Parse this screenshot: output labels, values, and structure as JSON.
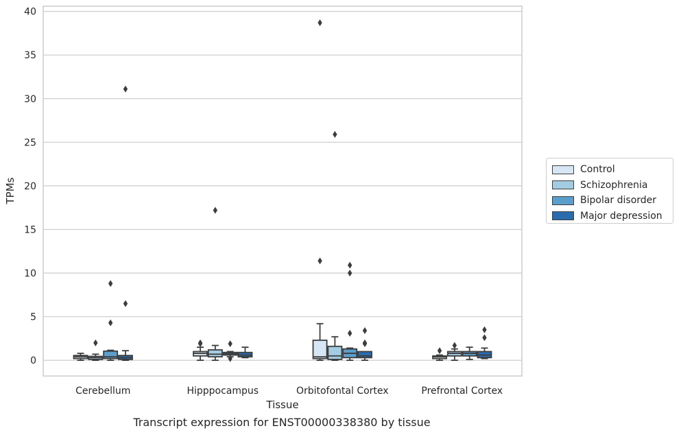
{
  "chart_data": {
    "type": "box",
    "title": "Transcript expression for ENST00000338380 by tissue",
    "xlabel": "Tissue",
    "ylabel": "TPMs",
    "ylim": [
      -1.8,
      40.6
    ],
    "yticks": [
      0,
      5,
      10,
      15,
      20,
      25,
      30,
      35,
      40
    ],
    "grid": true,
    "legend_position": "right",
    "categories": [
      "Cerebellum",
      "Hipppocampus",
      "Orbitofontal Cortex",
      "Prefrontal Cortex"
    ],
    "series": [
      {
        "name": "Control",
        "color": "#d6e6f4",
        "boxes": [
          {
            "whislo": 0.0,
            "q1": 0.2,
            "med": 0.4,
            "q3": 0.55,
            "whishi": 0.8,
            "fliers": []
          },
          {
            "whislo": 0.0,
            "q1": 0.5,
            "med": 0.8,
            "q3": 1.0,
            "whishi": 1.5,
            "fliers": [
              1.9,
              2.0
            ]
          },
          {
            "whislo": 0.0,
            "q1": 0.2,
            "med": 0.4,
            "q3": 2.3,
            "whishi": 4.2,
            "fliers": [
              11.4,
              38.7
            ]
          },
          {
            "whislo": 0.0,
            "q1": 0.2,
            "med": 0.4,
            "q3": 0.5,
            "whishi": 0.6,
            "fliers": [
              1.1
            ]
          }
        ]
      },
      {
        "name": "Schizophrenia",
        "color": "#a3cbe2",
        "boxes": [
          {
            "whislo": 0.0,
            "q1": 0.1,
            "med": 0.3,
            "q3": 0.45,
            "whishi": 0.7,
            "fliers": [
              2.0
            ]
          },
          {
            "whislo": 0.0,
            "q1": 0.4,
            "med": 0.7,
            "q3": 1.2,
            "whishi": 1.7,
            "fliers": [
              17.2
            ]
          },
          {
            "whislo": 0.0,
            "q1": 0.1,
            "med": 0.5,
            "q3": 1.6,
            "whishi": 2.7,
            "fliers": [
              25.9
            ]
          },
          {
            "whislo": 0.0,
            "q1": 0.5,
            "med": 0.8,
            "q3": 1.0,
            "whishi": 1.3,
            "fliers": [
              1.7
            ]
          }
        ]
      },
      {
        "name": "Bipolar disorder",
        "color": "#5b9dcb",
        "boxes": [
          {
            "whislo": 0.0,
            "q1": 0.2,
            "med": 0.4,
            "q3": 1.05,
            "whishi": 1.15,
            "fliers": [
              4.3,
              8.8
            ]
          },
          {
            "whislo": 0.4,
            "q1": 0.6,
            "med": 0.75,
            "q3": 0.9,
            "whishi": 1.0,
            "fliers": [
              0.2,
              1.9
            ]
          },
          {
            "whislo": 0.0,
            "q1": 0.3,
            "med": 0.8,
            "q3": 1.3,
            "whishi": 1.4,
            "fliers": [
              3.1,
              10.0,
              10.9
            ]
          },
          {
            "whislo": 0.1,
            "q1": 0.5,
            "med": 0.8,
            "q3": 1.0,
            "whishi": 1.5,
            "fliers": []
          }
        ]
      },
      {
        "name": "Major depression",
        "color": "#2a6cae",
        "boxes": [
          {
            "whislo": 0.0,
            "q1": 0.1,
            "med": 0.3,
            "q3": 0.55,
            "whishi": 1.1,
            "fliers": [
              6.5,
              31.1
            ]
          },
          {
            "whislo": 0.3,
            "q1": 0.4,
            "med": 0.6,
            "q3": 0.9,
            "whishi": 1.5,
            "fliers": []
          },
          {
            "whislo": 0.0,
            "q1": 0.3,
            "med": 0.5,
            "q3": 1.0,
            "whishi": 1.0,
            "fliers": [
              1.9,
              2.0,
              3.4
            ]
          },
          {
            "whislo": 0.2,
            "q1": 0.3,
            "med": 0.6,
            "q3": 1.0,
            "whishi": 1.4,
            "fliers": [
              2.6,
              3.5
            ]
          }
        ]
      }
    ]
  }
}
